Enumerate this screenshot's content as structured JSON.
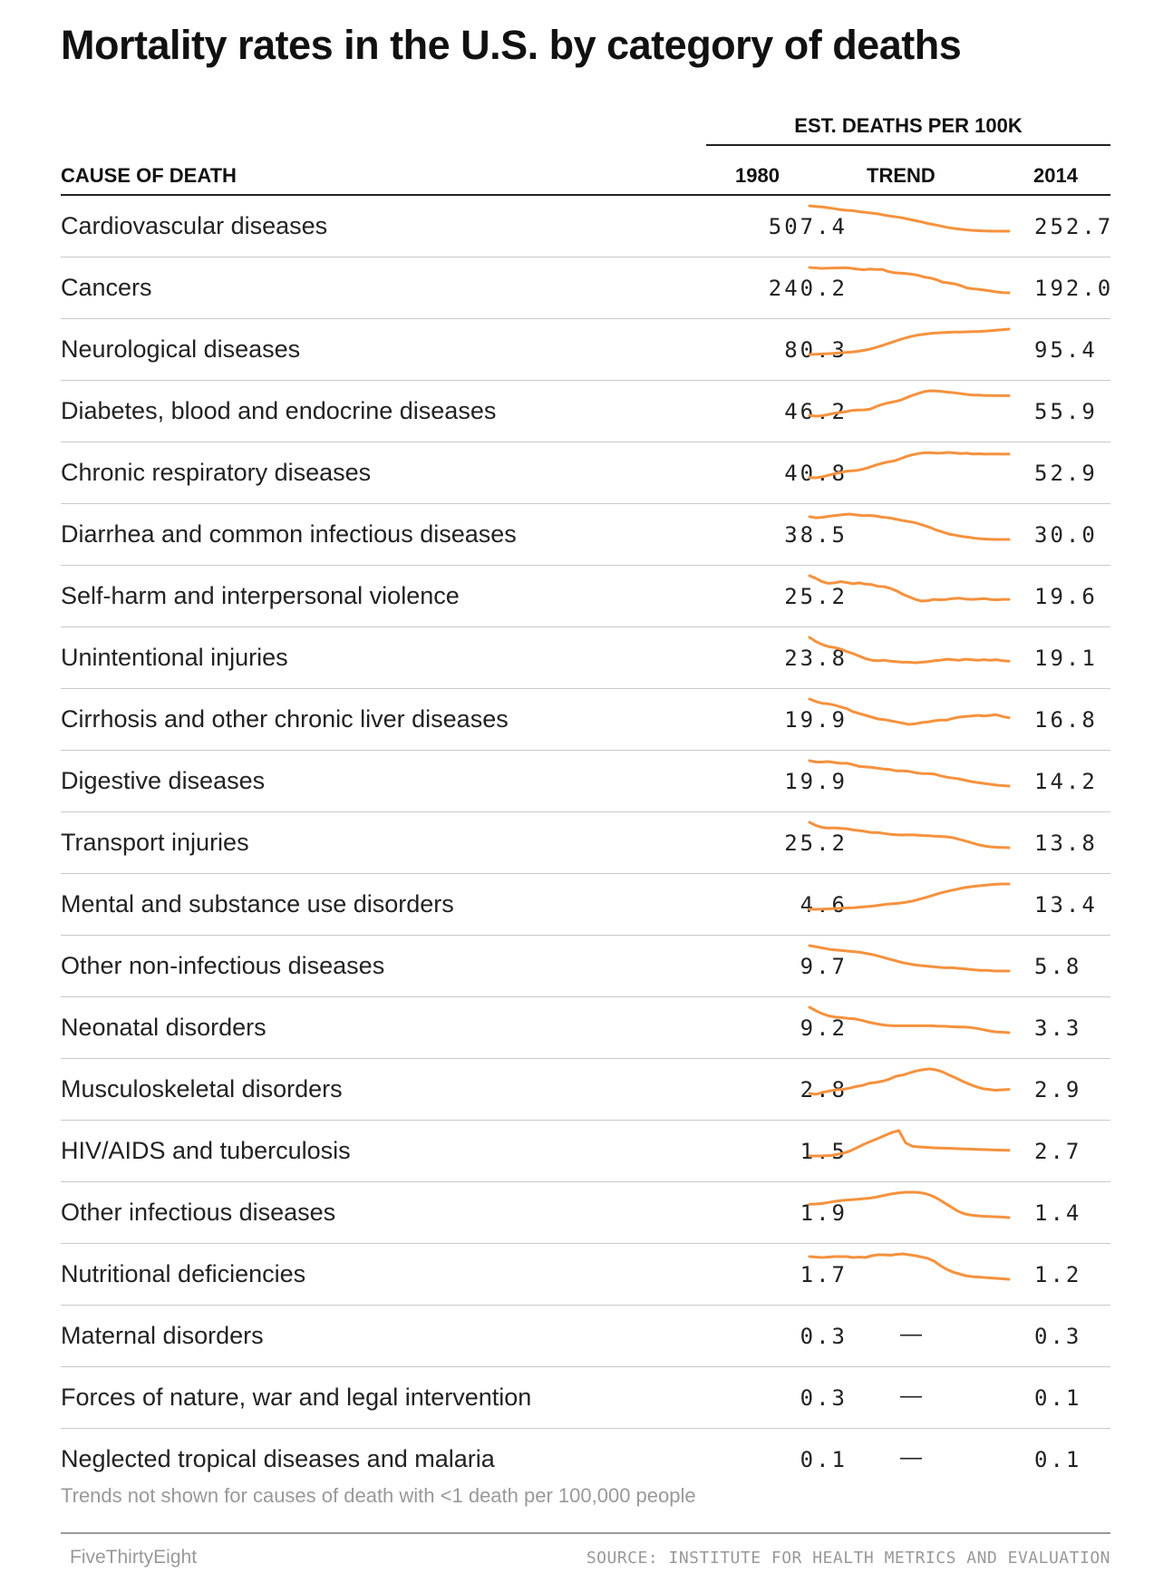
{
  "title": "Mortality rates in the U.S. by category of deaths",
  "chart_data": {
    "type": "table",
    "title": "Mortality rates in the U.S. by category of deaths",
    "column_group": "EST. DEATHS PER 100K",
    "columns": {
      "cause": "CAUSE OF DEATH",
      "start": "1980",
      "trend": "TREND",
      "end": "2014"
    },
    "trend_color": "#f5923e",
    "rows": [
      {
        "cause": "Cardiovascular diseases",
        "v1980": "507.4",
        "v2014": "252.7",
        "trend": [
          507.4,
          501,
          496,
          488,
          478,
          468,
          462,
          458,
          448,
          442,
          434,
          426,
          414,
          404,
          395,
          385,
          372,
          358,
          345,
          330,
          318,
          305,
          292,
          282,
          274,
          267,
          262,
          258,
          255,
          253.5,
          252.8,
          252.5,
          252.7
        ]
      },
      {
        "cause": "Cancers",
        "v1980": "240.2",
        "v2014": "192.0",
        "trend": [
          240.2,
          239.3,
          238.4,
          239,
          239.2,
          239.4,
          239.7,
          238.5,
          236.9,
          235.9,
          237.1,
          236.4,
          236.6,
          232.6,
          230.3,
          229.6,
          228.6,
          227.3,
          225.3,
          222,
          220.3,
          217,
          212.3,
          210.9,
          209,
          205.7,
          201.4,
          199.7,
          198.7,
          197.1,
          195.4,
          193.7,
          192.4,
          192
        ]
      },
      {
        "cause": "Neurological diseases",
        "v1980": "80.3",
        "v2014": "95.4",
        "trend": [
          80.3,
          80.4,
          80.6,
          80.8,
          81,
          81.2,
          81.5,
          81.8,
          82.2,
          82.8,
          83.5,
          84.5,
          85.6,
          86.8,
          88,
          89.2,
          90.3,
          91.2,
          91.9,
          92.4,
          92.8,
          93.1,
          93.3,
          93.5,
          93.6,
          93.7,
          93.8,
          93.9,
          94,
          94.2,
          94.5,
          94.8,
          95.1,
          95.4
        ]
      },
      {
        "cause": "Diabetes, blood and endocrine diseases",
        "v1980": "46.2",
        "v2014": "55.9",
        "trend": [
          46.2,
          45.8,
          46.0,
          46.5,
          47.2,
          47.6,
          48.0,
          48.6,
          48.8,
          48.9,
          49.2,
          50.5,
          51.5,
          52.3,
          52.9,
          53.6,
          54.8,
          56.0,
          57.0,
          57.9,
          58.3,
          58.2,
          57.9,
          57.6,
          57.3,
          56.9,
          56.5,
          56.2,
          56.2,
          56.0,
          56.0,
          55.9,
          55.9,
          55.9
        ]
      },
      {
        "cause": "Chronic respiratory diseases",
        "v1980": "40.8",
        "v2014": "52.9",
        "trend": [
          40.8,
          40.6,
          41.0,
          41.8,
          42.6,
          43.2,
          43.9,
          44.2,
          44.5,
          45.2,
          46.1,
          47.2,
          48.1,
          48.8,
          49.3,
          50.4,
          51.6,
          52.5,
          53.1,
          53.5,
          53.6,
          53.3,
          53.4,
          53.7,
          53.4,
          53.1,
          53.3,
          52.9,
          53.0,
          52.8,
          52.9,
          52.9,
          52.8,
          52.9
        ]
      },
      {
        "cause": "Diarrhea and common infectious diseases",
        "v1980": "38.5",
        "v2014": "30.0",
        "trend": [
          38.5,
          38.1,
          38.3,
          38.7,
          39.0,
          39.3,
          39.5,
          39.2,
          38.9,
          39.0,
          38.8,
          38.3,
          38.1,
          37.6,
          37.1,
          36.7,
          36.2,
          35.4,
          34.6,
          33.6,
          32.8,
          32.0,
          31.6,
          31.1,
          30.8,
          30.4,
          30.2,
          30.1,
          30.0,
          30.0,
          30.0
        ]
      },
      {
        "cause": "Self-harm and interpersonal violence",
        "v1980": "25.2",
        "v2014": "19.6",
        "trend": [
          25.2,
          24.6,
          23.8,
          23.4,
          23.5,
          23.8,
          23.6,
          23.3,
          23.5,
          23.2,
          23.1,
          22.7,
          22.6,
          22.2,
          21.6,
          20.8,
          20.2,
          19.6,
          19.2,
          19.3,
          19.6,
          19.5,
          19.6,
          19.8,
          19.9,
          19.7,
          19.6,
          19.7,
          19.8,
          19.6,
          19.5,
          19.6,
          19.6
        ]
      },
      {
        "cause": "Unintentional injuries",
        "v1980": "23.8",
        "v2014": "19.1",
        "trend": [
          23.8,
          23.0,
          22.4,
          22.0,
          21.8,
          21.5,
          21.0,
          20.6,
          20.1,
          19.6,
          19.3,
          19.2,
          19.3,
          19.1,
          19.0,
          18.9,
          18.9,
          18.8,
          18.9,
          19.0,
          19.2,
          19.3,
          19.5,
          19.4,
          19.3,
          19.5,
          19.4,
          19.3,
          19.4,
          19.3,
          19.4,
          19.2,
          19.1
        ]
      },
      {
        "cause": "Cirrhosis and other chronic liver diseases",
        "v1980": "19.9",
        "v2014": "16.8",
        "trend": [
          19.9,
          19.5,
          19.2,
          19.1,
          18.9,
          18.6,
          18.3,
          17.8,
          17.5,
          17.2,
          16.9,
          16.6,
          16.5,
          16.3,
          16.1,
          15.9,
          15.7,
          15.8,
          16.0,
          16.1,
          16.3,
          16.4,
          16.4,
          16.7,
          16.9,
          17.0,
          17.1,
          17.2,
          17.1,
          17.2,
          17.3,
          17.0,
          16.8
        ]
      },
      {
        "cause": "Digestive diseases",
        "v1980": "19.9",
        "v2014": "14.2",
        "trend": [
          19.9,
          19.6,
          19.6,
          19.7,
          19.5,
          19.3,
          19.3,
          19.0,
          18.6,
          18.5,
          18.4,
          18.2,
          18.0,
          17.9,
          17.6,
          17.6,
          17.5,
          17.2,
          17.0,
          17.0,
          16.9,
          16.5,
          16.2,
          16.0,
          15.8,
          15.5,
          15.2,
          15.0,
          14.8,
          14.6,
          14.4,
          14.3,
          14.2
        ]
      },
      {
        "cause": "Transport injuries",
        "v1980": "25.2",
        "v2014": "13.8",
        "trend": [
          25.2,
          23.8,
          22.9,
          22.6,
          22.7,
          22.5,
          22.3,
          21.8,
          21.5,
          21.1,
          20.6,
          20.6,
          20.2,
          19.8,
          19.6,
          19.5,
          19.6,
          19.5,
          19.3,
          19.2,
          19.0,
          18.9,
          18.7,
          18.3,
          17.6,
          16.8,
          16.0,
          15.2,
          14.6,
          14.2,
          14.0,
          13.9,
          13.8
        ]
      },
      {
        "cause": "Mental and substance use disorders",
        "v1980": "4.6",
        "v2014": "13.4",
        "trend": [
          4.6,
          4.5,
          4.6,
          4.7,
          4.8,
          4.9,
          5.0,
          5.1,
          5.3,
          5.5,
          5.7,
          6.0,
          6.3,
          6.5,
          6.7,
          7.0,
          7.4,
          8.0,
          8.6,
          9.3,
          10.0,
          10.6,
          11.1,
          11.6,
          12.1,
          12.4,
          12.7,
          12.9,
          13.1,
          13.3,
          13.4,
          13.4
        ]
      },
      {
        "cause": "Other non-infectious diseases",
        "v1980": "9.7",
        "v2014": "5.8",
        "trend": [
          9.7,
          9.5,
          9.3,
          9.1,
          9.0,
          8.9,
          8.8,
          8.7,
          8.5,
          8.3,
          8.0,
          7.7,
          7.4,
          7.1,
          6.9,
          6.7,
          6.6,
          6.5,
          6.4,
          6.3,
          6.3,
          6.2,
          6.1,
          6.0,
          5.9,
          5.9,
          5.8,
          5.8,
          5.8
        ]
      },
      {
        "cause": "Neonatal disorders",
        "v1980": "9.2",
        "v2014": "3.3",
        "trend": [
          9.2,
          8.4,
          7.7,
          7.2,
          6.9,
          6.8,
          6.6,
          6.5,
          6.2,
          5.8,
          5.5,
          5.2,
          5.0,
          4.9,
          4.9,
          4.9,
          4.9,
          4.9,
          4.9,
          4.9,
          4.8,
          4.8,
          4.7,
          4.6,
          4.6,
          4.5,
          4.3,
          4.0,
          3.7,
          3.5,
          3.4,
          3.3
        ]
      },
      {
        "cause": "Musculoskeletal disorders",
        "v1980": "2.8",
        "v2014": "2.9",
        "trend": [
          2.8,
          2.78,
          2.83,
          2.86,
          2.89,
          2.9,
          2.93,
          2.97,
          3.0,
          3.05,
          3.07,
          3.1,
          3.15,
          3.22,
          3.25,
          3.3,
          3.35,
          3.38,
          3.4,
          3.38,
          3.33,
          3.25,
          3.18,
          3.1,
          3.03,
          2.97,
          2.92,
          2.9,
          2.88,
          2.89,
          2.9
        ]
      },
      {
        "cause": "HIV/AIDS and tuberculosis",
        "v1980": "1.5",
        "v2014": "2.7",
        "trend": [
          1.5,
          1.5,
          1.52,
          1.6,
          1.8,
          2.1,
          2.6,
          3.3,
          4.0,
          4.6,
          5.2,
          5.8,
          6.4,
          6.8,
          4.2,
          3.5,
          3.4,
          3.3,
          3.2,
          3.15,
          3.1,
          3.05,
          3.0,
          2.95,
          2.9,
          2.85,
          2.8,
          2.75,
          2.72,
          2.7
        ]
      },
      {
        "cause": "Other infectious diseases",
        "v1980": "1.9",
        "v2014": "1.4",
        "trend": [
          1.9,
          1.91,
          1.93,
          1.97,
          2.01,
          2.04,
          2.06,
          2.08,
          2.1,
          2.12,
          2.15,
          2.2,
          2.25,
          2.3,
          2.33,
          2.35,
          2.35,
          2.34,
          2.3,
          2.22,
          2.1,
          1.95,
          1.8,
          1.65,
          1.55,
          1.5,
          1.47,
          1.45,
          1.44,
          1.43,
          1.42,
          1.4
        ]
      },
      {
        "cause": "Nutritional deficiencies",
        "v1980": "1.7",
        "v2014": "1.2",
        "trend": [
          1.7,
          1.69,
          1.68,
          1.69,
          1.7,
          1.7,
          1.7,
          1.68,
          1.69,
          1.68,
          1.72,
          1.74,
          1.74,
          1.73,
          1.75,
          1.76,
          1.74,
          1.72,
          1.69,
          1.66,
          1.6,
          1.5,
          1.42,
          1.36,
          1.32,
          1.28,
          1.26,
          1.25,
          1.24,
          1.23,
          1.22,
          1.21,
          1.2
        ]
      },
      {
        "cause": "Maternal disorders",
        "v1980": "0.3",
        "v2014": "0.3",
        "trend": null
      },
      {
        "cause": "Forces of nature, war and legal intervention",
        "v1980": "0.3",
        "v2014": "0.1",
        "trend": null
      },
      {
        "cause": "Neglected tropical diseases and malaria",
        "v1980": "0.1",
        "v2014": "0.1",
        "trend": null
      }
    ],
    "no_trend_symbol": "—"
  },
  "footnote": "Trends not shown for causes of death with <1 death per 100,000 people",
  "brand": "FiveThirtyEight",
  "source": "SOURCE: INSTITUTE FOR HEALTH METRICS AND EVALUATION"
}
